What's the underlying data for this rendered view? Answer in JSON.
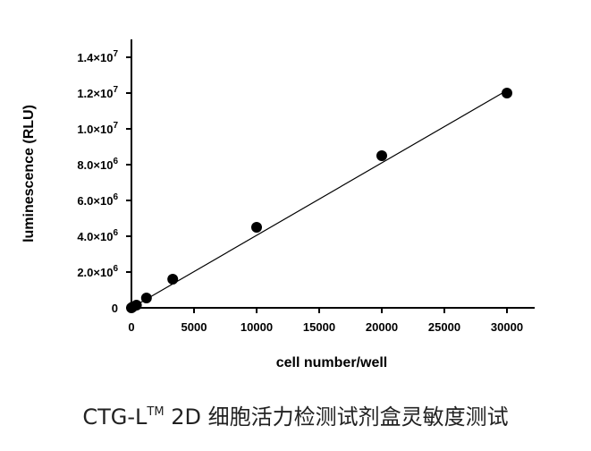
{
  "chart_data": {
    "type": "scatter",
    "xlabel": "cell number/well",
    "ylabel": "luminescence (RLU)",
    "xlim": [
      0,
      32000
    ],
    "ylim": [
      0,
      14000000
    ],
    "x_ticks": [
      0,
      5000,
      10000,
      15000,
      20000,
      25000,
      30000
    ],
    "x_tick_labels": [
      "0",
      "5000",
      "10000",
      "15000",
      "20000",
      "25000",
      "30000"
    ],
    "y_ticks": [
      0,
      2000000,
      4000000,
      6000000,
      8000000,
      10000000,
      12000000,
      14000000
    ],
    "y_tick_labels": [
      {
        "mantissa": "0",
        "exponent": ""
      },
      {
        "mantissa": "2.0×10",
        "exponent": "6"
      },
      {
        "mantissa": "4.0×10",
        "exponent": "6"
      },
      {
        "mantissa": "6.0×10",
        "exponent": "6"
      },
      {
        "mantissa": "8.0×10",
        "exponent": "6"
      },
      {
        "mantissa": "1.0×10",
        "exponent": "7"
      },
      {
        "mantissa": "1.2×10",
        "exponent": "7"
      },
      {
        "mantissa": "1.4×10",
        "exponent": "7"
      }
    ],
    "series": [
      {
        "x": [
          0,
          100,
          400,
          1200,
          3300,
          10000,
          20000,
          30000
        ],
        "y": [
          0,
          50000,
          150000,
          550000,
          1600000,
          4500000,
          8500000,
          12000000
        ]
      }
    ],
    "fit_line": {
      "x": [
        0,
        30000
      ],
      "y": [
        0,
        12150000
      ]
    },
    "grid": false,
    "legend": "none",
    "colors": {
      "marker": "#000000",
      "line": "#000000",
      "axis": "#000000"
    }
  },
  "caption": {
    "prefix": "CTG-L",
    "superscript": "TM",
    "suffix": " 2D 细胞活力检测试剂盒灵敏度测试"
  }
}
